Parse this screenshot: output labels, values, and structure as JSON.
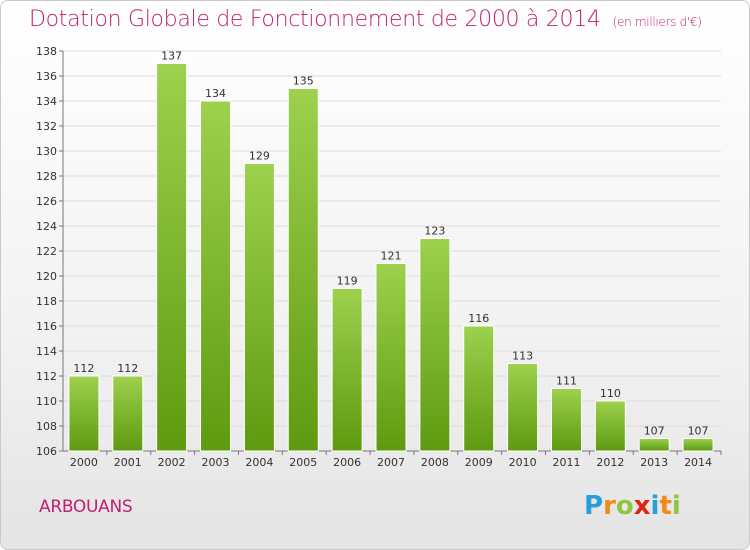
{
  "header": {
    "title": "Dotation Globale de Fonctionnement de 2000 à 2014",
    "unit": "(en milliers d'€)"
  },
  "footer": {
    "commune": "ARBOUANS",
    "logo_letters": [
      "P",
      "r",
      "o",
      "x",
      "i",
      "t",
      "i"
    ],
    "logo_colors": [
      "#2b9ed8",
      "#f08a1c",
      "#8dc63f",
      "#e2231a",
      "#2b9ed8",
      "#f08a1c",
      "#8dc63f"
    ]
  },
  "colors": {
    "title": "#c0206e",
    "bar_top": "#9dd14e",
    "bar_bottom": "#5e9a10",
    "grid": "#dddddd",
    "axis": "#777777"
  },
  "chart_data": {
    "type": "bar",
    "title": "Dotation Globale de Fonctionnement de 2000 à 2014",
    "subtitle": "(en milliers d'€)",
    "categories": [
      "2000",
      "2001",
      "2002",
      "2003",
      "2004",
      "2005",
      "2006",
      "2007",
      "2008",
      "2009",
      "2010",
      "2011",
      "2012",
      "2013",
      "2014"
    ],
    "values": [
      112,
      112,
      137,
      134,
      129,
      135,
      119,
      121,
      123,
      116,
      113,
      111,
      110,
      107,
      107
    ],
    "ylim": [
      106,
      138
    ],
    "yticks": [
      106,
      108,
      110,
      112,
      114,
      116,
      118,
      120,
      122,
      124,
      126,
      128,
      130,
      132,
      134,
      136,
      138
    ],
    "grid": true,
    "legend": "none"
  }
}
